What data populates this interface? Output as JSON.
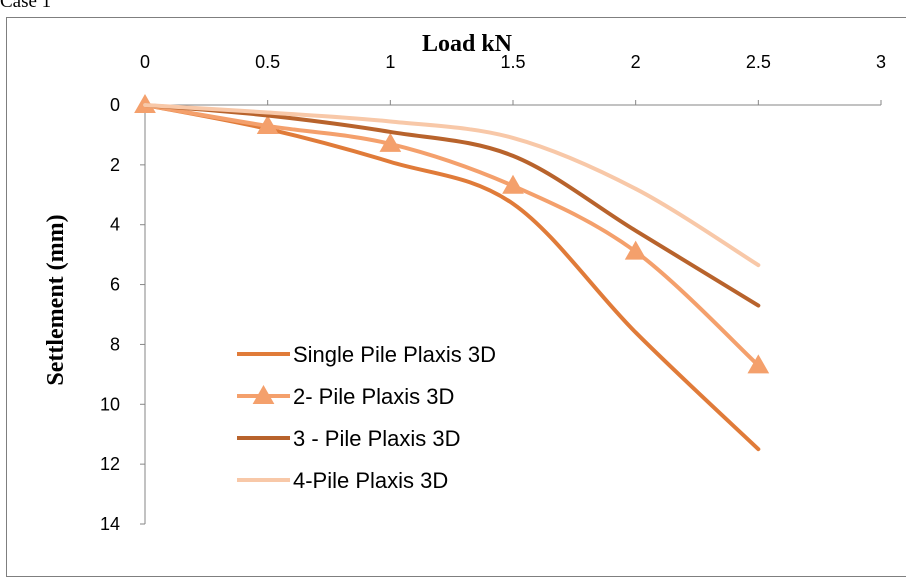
{
  "caption": "Case 1",
  "chart_data": {
    "type": "line",
    "title": "",
    "xlabel": "Load kN",
    "ylabel": "Settlement (mm)",
    "xlim": [
      0,
      3
    ],
    "ylim": [
      0,
      14
    ],
    "x_ticks": [
      0,
      0.5,
      1,
      1.5,
      2,
      2.5,
      3
    ],
    "y_ticks": [
      0,
      2,
      4,
      6,
      8,
      10,
      12,
      14
    ],
    "x_axis_position": "top",
    "y_reversed": true,
    "grid": false,
    "legend_position": "bottom-left",
    "x": [
      0,
      0.5,
      1,
      1.5,
      2,
      2.5
    ],
    "series": [
      {
        "name": " Single Pile Plaxis 3D",
        "values": [
          0,
          0.8,
          1.9,
          3.3,
          7.6,
          11.5
        ],
        "color": "#e07b39",
        "marker": "none"
      },
      {
        "name": "2- Pile Plaxis 3D",
        "values": [
          0,
          0.7,
          1.3,
          2.7,
          4.9,
          8.7
        ],
        "color": "#f4a06c",
        "marker": "triangle"
      },
      {
        "name": "3 - Pile Plaxis 3D",
        "values": [
          0,
          0.35,
          0.9,
          1.7,
          4.2,
          6.7
        ],
        "color": "#b8632c",
        "marker": "none"
      },
      {
        "name": "4-Pile Plaxis 3D",
        "values": [
          0,
          0.25,
          0.55,
          1.1,
          2.8,
          5.35
        ],
        "color": "#f8c8a8",
        "marker": "none"
      }
    ]
  }
}
